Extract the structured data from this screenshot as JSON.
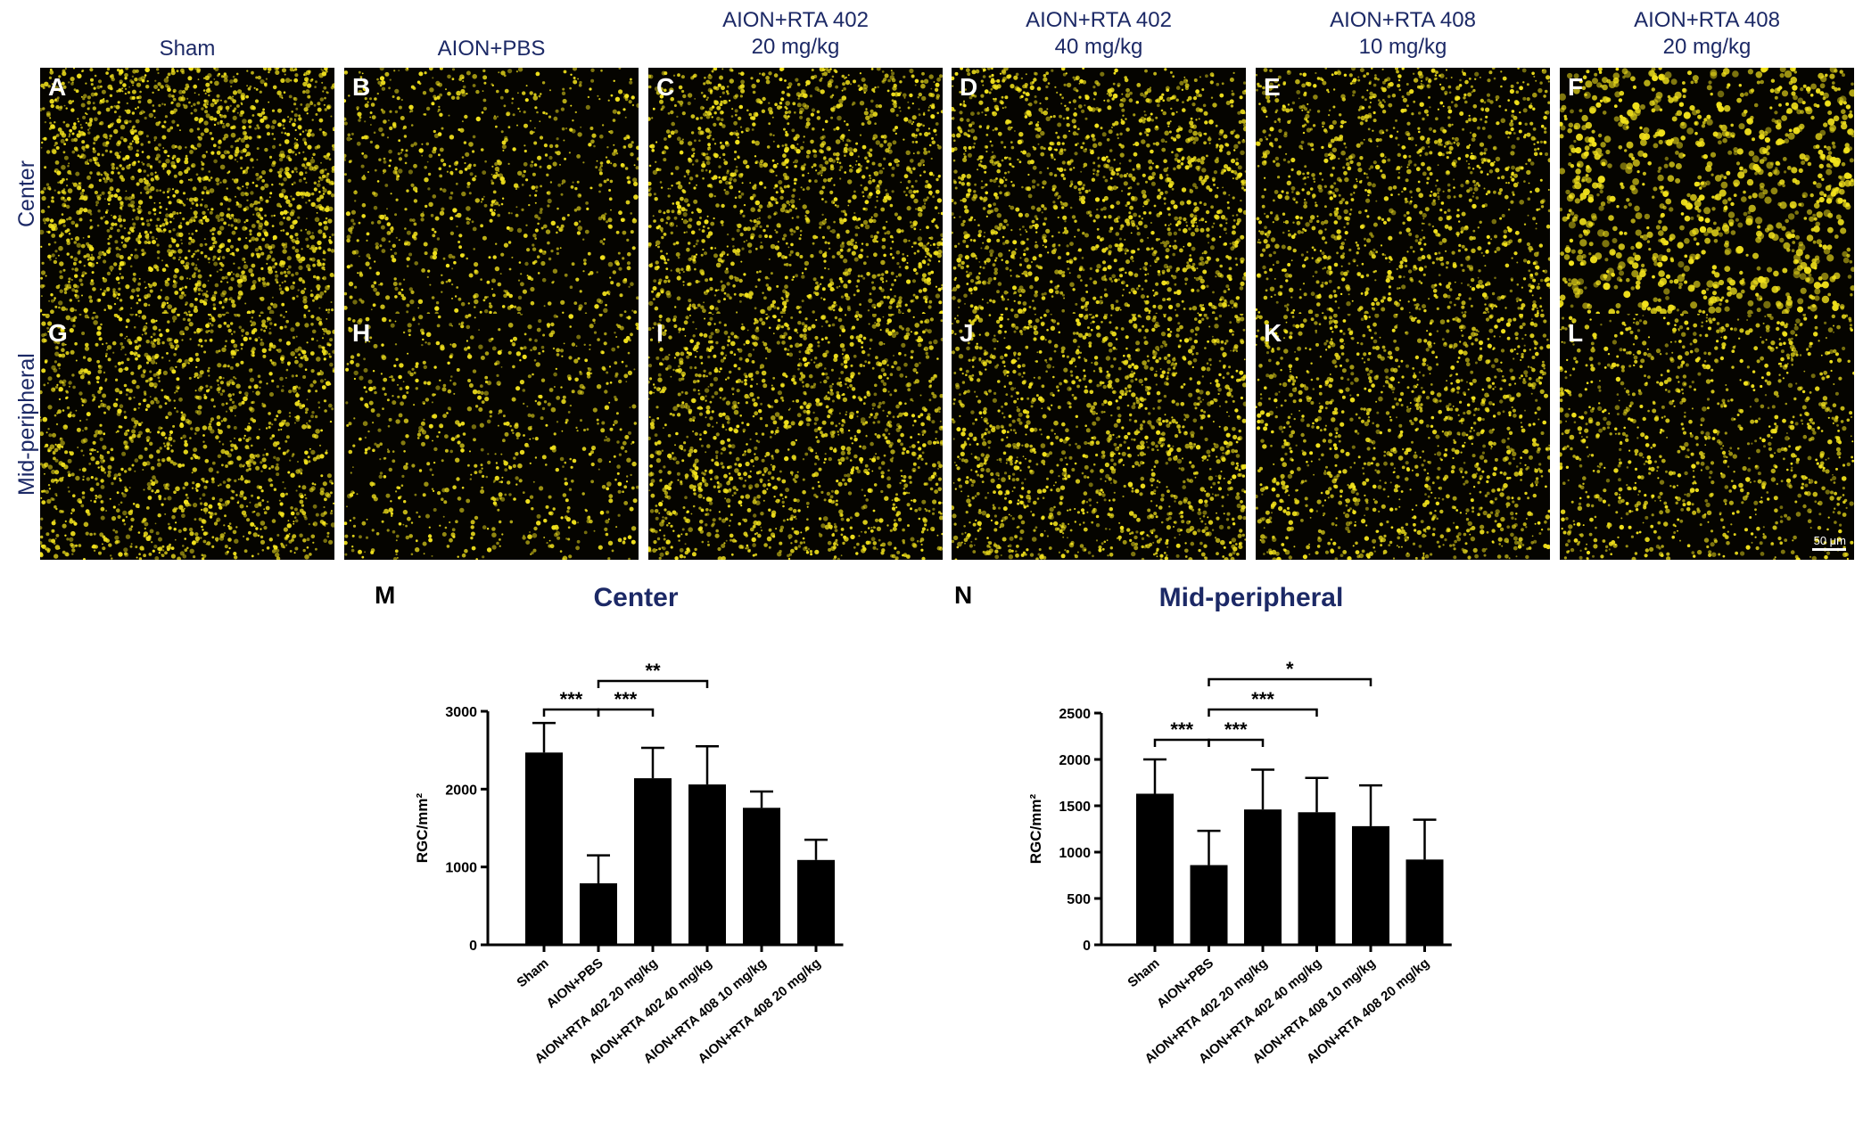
{
  "figure": {
    "column_headers": [
      [
        "Sham"
      ],
      [
        "AION+PBS"
      ],
      [
        "AION+RTA 402",
        "20 mg/kg"
      ],
      [
        "AION+RTA 402",
        "40 mg/kg"
      ],
      [
        "AION+RTA 408",
        "10 mg/kg"
      ],
      [
        "AION+RTA 408",
        "20 mg/kg"
      ]
    ],
    "row_labels": [
      "Center",
      "Mid-peripheral"
    ],
    "panel_letters": [
      "A",
      "B",
      "C",
      "D",
      "E",
      "F",
      "G",
      "H",
      "I",
      "J",
      "K",
      "L"
    ],
    "scale_bar": "50 μm",
    "colors": {
      "stain": "#f2e21c",
      "background": "#050400",
      "header_text": "#1c2966",
      "bars": "#000000"
    }
  },
  "chart_data": [
    {
      "panel": "M",
      "type": "bar",
      "title": "Center",
      "ylabel": "RGC/mm²",
      "ylim": [
        0,
        3000
      ],
      "yticks": [
        0,
        1000,
        2000,
        3000
      ],
      "categories": [
        "Sham",
        "AION+PBS",
        "AION+RTA 402 20 mg/kg",
        "AION+RTA 402 40 mg/kg",
        "AION+RTA 408 10 mg/kg",
        "AION+RTA 408 20 mg/kg"
      ],
      "values": [
        2470,
        790,
        2140,
        2060,
        1760,
        1090
      ],
      "errors": [
        380,
        360,
        390,
        490,
        210,
        260
      ],
      "significance": [
        {
          "from": 0,
          "to": 1,
          "label": "***"
        },
        {
          "from": 1,
          "to": 2,
          "label": "***"
        },
        {
          "from": 1,
          "to": 3,
          "label": "**"
        }
      ]
    },
    {
      "panel": "N",
      "type": "bar",
      "title": "Mid-peripheral",
      "ylabel": "RGC/mm²",
      "ylim": [
        0,
        2500
      ],
      "yticks": [
        0,
        500,
        1000,
        1500,
        2000,
        2500
      ],
      "categories": [
        "Sham",
        "AION+PBS",
        "AION+RTA 402 20 mg/kg",
        "AION+RTA 402 40 mg/kg",
        "AION+RTA 408 10 mg/kg",
        "AION+RTA 408 20 mg/kg"
      ],
      "values": [
        1630,
        860,
        1460,
        1430,
        1280,
        920
      ],
      "errors": [
        370,
        370,
        430,
        370,
        440,
        430
      ],
      "significance": [
        {
          "from": 0,
          "to": 1,
          "label": "***"
        },
        {
          "from": 1,
          "to": 2,
          "label": "***"
        },
        {
          "from": 1,
          "to": 3,
          "label": "***"
        },
        {
          "from": 1,
          "to": 4,
          "label": "*"
        }
      ]
    }
  ]
}
